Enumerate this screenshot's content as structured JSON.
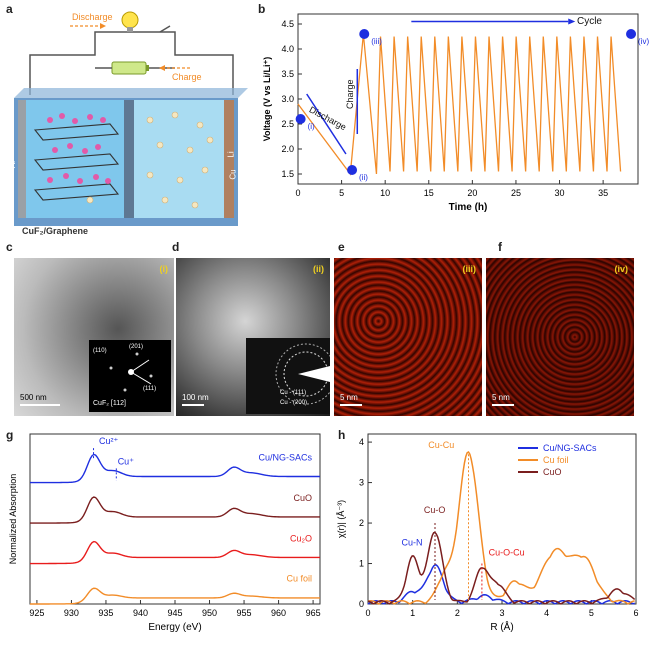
{
  "panel_labels": {
    "a": "a",
    "b": "b",
    "c": "c",
    "d": "d",
    "e": "e",
    "f": "f",
    "g": "g",
    "h": "h"
  },
  "panel_a": {
    "discharge_label": "Discharge",
    "charge_label": "Charge",
    "electrode_left": "Al",
    "electrode_right_1": "Li",
    "electrode_right_2": "Cu",
    "caption": "CuF₂/Graphene"
  },
  "panel_c": {
    "tag": "(i)",
    "scale": "500 nm",
    "inset_labels": [
      "(110)",
      "(201)",
      "(111)"
    ],
    "inset_caption": "CuF₂  [112]"
  },
  "panel_d": {
    "tag": "(ii)",
    "scale": "100 nm",
    "inset_labels": [
      "Cu - (111)",
      "Cu - (200)"
    ]
  },
  "panel_e": {
    "tag": "(iii)",
    "scale": "5 nm"
  },
  "panel_f": {
    "tag": "(iv)",
    "scale": "5 nm"
  },
  "chart_data": [
    {
      "id": "b",
      "type": "line",
      "xlabel": "Time (h)",
      "ylabel": "Voltage (V vs Li/Li⁺)",
      "xlim": [
        0,
        39
      ],
      "ylim": [
        1.3,
        4.7
      ],
      "xticks": [
        0,
        5,
        10,
        15,
        20,
        25,
        30,
        35
      ],
      "yticks": [
        1.5,
        2.0,
        2.5,
        3.0,
        3.5,
        4.0,
        4.5
      ],
      "series": [
        {
          "name": "voltage",
          "color": "#f28c28",
          "first_cycle": {
            "x": [
              0,
              6,
              7.5,
              9
            ],
            "y": [
              2.9,
              1.5,
              4.3,
              1.5
            ]
          },
          "later_cycles": {
            "start": 9,
            "end": 37,
            "count": 18,
            "min": 1.55,
            "max": 4.25
          }
        }
      ],
      "markers": [
        {
          "label": "(i)",
          "x": 0.3,
          "y": 2.6
        },
        {
          "label": "(ii)",
          "x": 6.2,
          "y": 1.58
        },
        {
          "label": "(iii)",
          "x": 7.6,
          "y": 4.3
        },
        {
          "label": "(iv)",
          "x": 38.2,
          "y": 4.3
        }
      ],
      "annotations": {
        "discharge": "Discharge",
        "charge": "Charge",
        "cycle": "Cycle"
      }
    },
    {
      "id": "g",
      "type": "line",
      "xlabel": "Energy (eV)",
      "ylabel": "Normalized Absorption",
      "xlim": [
        924,
        966
      ],
      "xticks": [
        925,
        930,
        935,
        940,
        945,
        950,
        955,
        960,
        965
      ],
      "series": [
        {
          "name": "Cu/NG-SACs",
          "color": "#1f2fe0",
          "offset": 3.0,
          "amp": 0.6
        },
        {
          "name": "CuO",
          "color": "#7a1e1e",
          "offset": 2.0,
          "amp": 0.55
        },
        {
          "name": "Cu₂O",
          "color": "#e81c1c",
          "offset": 1.0,
          "amp": 0.45
        },
        {
          "name": "Cu foil",
          "color": "#f28c28",
          "offset": 0.0,
          "amp": 0.3
        }
      ],
      "annotations": [
        "Cu²⁺",
        "Cu⁺"
      ]
    },
    {
      "id": "h",
      "type": "line",
      "xlabel": "R (Å)",
      "ylabel": "χ(r)| (Å⁻³)",
      "xlim": [
        0,
        6
      ],
      "ylim": [
        0,
        4.2
      ],
      "xticks": [
        0,
        1,
        2,
        3,
        4,
        5,
        6
      ],
      "yticks": [
        0,
        1,
        2,
        3,
        4
      ],
      "series": [
        {
          "name": "Cu/NG-SACs",
          "color": "#1f2fe0",
          "peaks": [
            [
              1.5,
              0.9,
              0.18
            ],
            [
              1.0,
              0.25,
              0.15
            ],
            [
              2.6,
              0.15,
              0.2
            ]
          ]
        },
        {
          "name": "Cu foil",
          "color": "#f28c28",
          "peaks": [
            [
              2.25,
              3.7,
              0.22
            ],
            [
              1.7,
              0.6,
              0.15
            ],
            [
              4.2,
              1.25,
              0.3
            ],
            [
              4.85,
              1.0,
              0.25
            ],
            [
              3.3,
              0.5,
              0.2
            ]
          ]
        },
        {
          "name": "CuO",
          "color": "#7a1e1e",
          "peaks": [
            [
              1.5,
              1.75,
              0.16
            ],
            [
              1.0,
              1.1,
              0.14
            ],
            [
              2.55,
              0.85,
              0.14
            ],
            [
              2.9,
              0.45,
              0.15
            ],
            [
              5.6,
              0.3,
              0.2
            ]
          ]
        }
      ],
      "annotations": [
        "Cu-Cu",
        "Cu-O",
        "Cu-N",
        "Cu-O-Cu"
      ]
    }
  ]
}
